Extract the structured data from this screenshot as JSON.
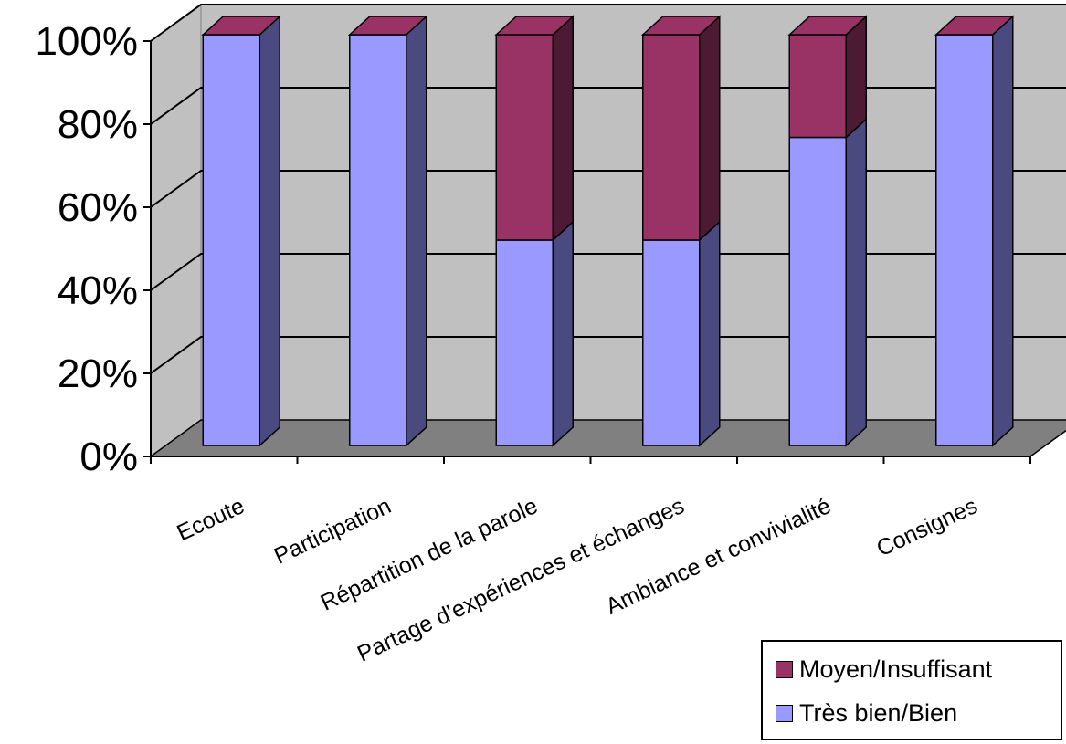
{
  "chart_data": {
    "type": "bar",
    "stacked": true,
    "percent": true,
    "three_d": true,
    "categories": [
      "Ecoute",
      "Participation",
      "Répartition de la parole",
      "Partage d'expériences et échanges",
      "Ambiance et convivialité",
      "Consignes"
    ],
    "series": [
      {
        "name": "Très bien/Bien",
        "values": [
          100,
          100,
          50,
          50,
          75,
          100
        ],
        "color": "#9999FF"
      },
      {
        "name": "Moyen/Insuffisant",
        "values": [
          0,
          0,
          50,
          50,
          25,
          0
        ],
        "color": "#993366"
      }
    ],
    "yticks": [
      "0%",
      "20%",
      "40%",
      "60%",
      "80%",
      "100%"
    ],
    "ylim": [
      0,
      100
    ],
    "grid": true,
    "legend_position": "bottom-right",
    "colors": {
      "wall": "#C0C0C0",
      "floor": "#808080",
      "series1_side": "#4A4A80",
      "series2_side": "#4C1A33"
    }
  }
}
